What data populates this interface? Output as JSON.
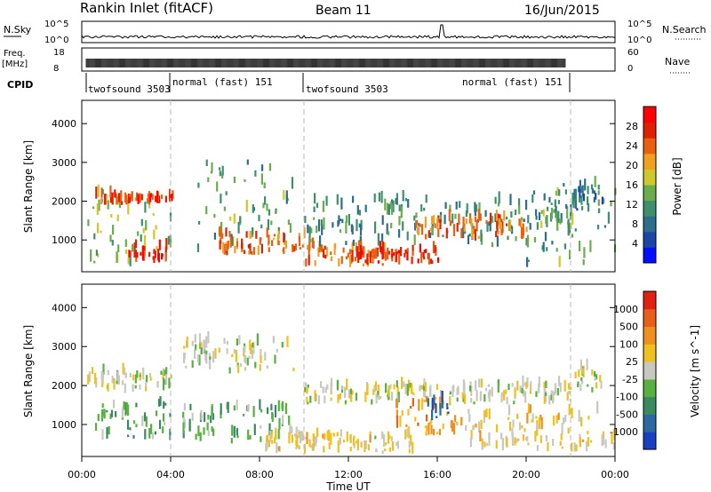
{
  "header": {
    "station": "Rankin Inlet (fitACF)",
    "beam": "Beam 11",
    "date": "16/Jun/2015"
  },
  "panels": {
    "noise": {
      "left_label": "N.Sky",
      "right_label": "N.Search",
      "left_ticks": [
        "10^5",
        "10^0"
      ],
      "right_ticks": [
        "10^5",
        "10^0"
      ]
    },
    "freq": {
      "left_label_1": "Freq.",
      "left_label_2": "[MHz]",
      "right_label": "Nave",
      "left_ticks": [
        "18",
        "8"
      ],
      "right_ticks": [
        "60",
        "0"
      ]
    },
    "cpid": {
      "label": "CPID",
      "segments": [
        "twofsound 3503",
        "normal (fast) 151",
        "twofsound 3503",
        "normal (fast) 151"
      ]
    }
  },
  "axes": {
    "x_ticks": [
      "00:00",
      "04:00",
      "08:00",
      "12:00",
      "16:00",
      "20:00",
      "00:00"
    ],
    "x_label": "Time UT",
    "y_label": "Slant Range [km]",
    "y_ticks": [
      "1000",
      "2000",
      "3000",
      "4000"
    ]
  },
  "colorbars": {
    "power": {
      "label": "Power [dB]",
      "ticks": [
        "4",
        "8",
        "12",
        "16",
        "20",
        "24",
        "28"
      ],
      "colors": [
        "#0010ff",
        "#1a46a6",
        "#2c6e8c",
        "#3e8f6c",
        "#69ad4d",
        "#cfc82a",
        "#f0a020",
        "#e86010",
        "#e02000",
        "#ff0000"
      ]
    },
    "velocity": {
      "label": "Velocity [m s^-1]",
      "ticks": [
        "1000",
        "500",
        "100",
        "25",
        "-25",
        "-100",
        "-500",
        "-1000"
      ],
      "colors": [
        "#1840c0",
        "#2a6aa0",
        "#3a8a60",
        "#58b040",
        "#c8c8c0",
        "#f0c020",
        "#f0901c",
        "#e86018",
        "#e02010"
      ]
    }
  },
  "chart_data": [
    {
      "type": "heatmap",
      "title": "Power",
      "xlabel": "Time UT",
      "ylabel": "Slant Range [km]",
      "xlim": [
        0,
        24
      ],
      "ylim": [
        180,
        4600
      ],
      "zlim": [
        0,
        30
      ],
      "blobs": [
        {
          "t0": 0.2,
          "t1": 4.0,
          "r0": 300,
          "r1": 2200,
          "v": 14
        },
        {
          "t0": 0.5,
          "t1": 3.0,
          "r0": 1900,
          "r1": 2100,
          "v": 24
        },
        {
          "t0": 3.0,
          "t1": 4.1,
          "r0": 1950,
          "r1": 2100,
          "v": 26
        },
        {
          "t0": 2.0,
          "t1": 4.0,
          "r0": 400,
          "r1": 800,
          "v": 26
        },
        {
          "t0": 5.0,
          "t1": 9.5,
          "r0": 300,
          "r1": 3000,
          "v": 12
        },
        {
          "t0": 6.0,
          "t1": 10.0,
          "r0": 600,
          "r1": 1100,
          "v": 22
        },
        {
          "t0": 10.0,
          "t1": 14.0,
          "r0": 300,
          "r1": 800,
          "v": 22
        },
        {
          "t0": 12.0,
          "t1": 16.0,
          "r0": 350,
          "r1": 700,
          "v": 26
        },
        {
          "t0": 10.0,
          "t1": 22.0,
          "r0": 800,
          "r1": 2000,
          "v": 10
        },
        {
          "t0": 15.0,
          "t1": 20.0,
          "r0": 1000,
          "r1": 1500,
          "v": 22
        },
        {
          "t0": 20.0,
          "t1": 24.0,
          "r0": 300,
          "r1": 2400,
          "v": 12
        },
        {
          "t0": 22.0,
          "t1": 23.5,
          "r0": 1700,
          "r1": 2300,
          "v": 8
        }
      ]
    },
    {
      "type": "heatmap",
      "title": "Velocity",
      "xlabel": "Time UT",
      "ylabel": "Slant Range [km]",
      "xlim": [
        0,
        24
      ],
      "ylim": [
        180,
        4600
      ],
      "zlim": [
        -1000,
        1000
      ],
      "blobs": [
        {
          "t0": 0.2,
          "t1": 4.0,
          "r0": 1800,
          "r1": 2300,
          "v": 0
        },
        {
          "t0": 0.5,
          "t1": 4.0,
          "r0": 600,
          "r1": 1500,
          "v": 300
        },
        {
          "t0": 4.5,
          "t1": 9.5,
          "r0": 2300,
          "r1": 3100,
          "v": 0
        },
        {
          "t0": 4.5,
          "t1": 9.5,
          "r0": 500,
          "r1": 1400,
          "v": 250
        },
        {
          "t0": 8.0,
          "t1": 15.0,
          "r0": 250,
          "r1": 700,
          "v": -120
        },
        {
          "t0": 10.0,
          "t1": 22.0,
          "r0": 1500,
          "r1": 2000,
          "v": 0
        },
        {
          "t0": 14.0,
          "t1": 17.0,
          "r0": 700,
          "r1": 1600,
          "v": -400
        },
        {
          "t0": 15.5,
          "t1": 16.5,
          "r0": 1100,
          "r1": 1600,
          "v": 800
        },
        {
          "t0": 17.0,
          "t1": 24.0,
          "r0": 300,
          "r1": 1300,
          "v": -150
        },
        {
          "t0": 22.0,
          "t1": 23.5,
          "r0": 1800,
          "r1": 2400,
          "v": 0
        }
      ]
    }
  ]
}
